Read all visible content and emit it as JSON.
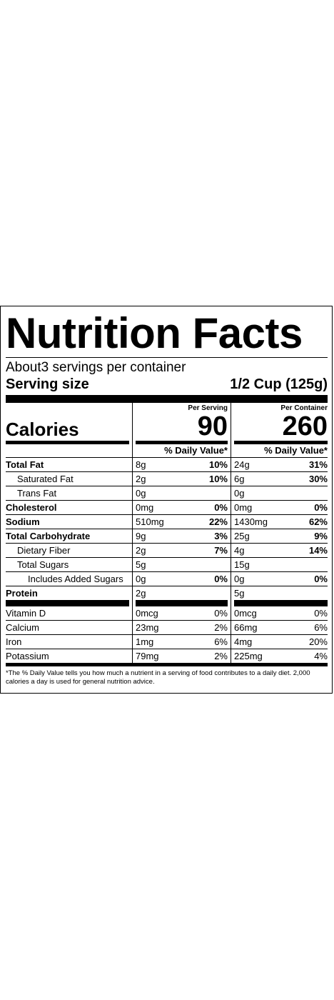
{
  "title": "Nutrition Facts",
  "servings_per_container": "About3 servings per container",
  "serving_size_label": "Serving size",
  "serving_size_value": "1/2 Cup (125g)",
  "per_serving_header": "Per Serving",
  "per_container_header": "Per Container",
  "calories_label": "Calories",
  "calories_serving": "90",
  "calories_container": "260",
  "dv_header": "% Daily Value*",
  "nutrients": [
    {
      "name": "Total Fat",
      "bold": true,
      "indent": 0,
      "s_amt": "8g",
      "s_dv": "10%",
      "c_amt": "24g",
      "c_dv": "31%"
    },
    {
      "name": "Saturated Fat",
      "bold": false,
      "indent": 1,
      "s_amt": "2g",
      "s_dv": "10%",
      "c_amt": "6g",
      "c_dv": "30%"
    },
    {
      "name": "Trans Fat",
      "bold": false,
      "indent": 1,
      "s_amt": "0g",
      "s_dv": "",
      "c_amt": "0g",
      "c_dv": ""
    },
    {
      "name": "Cholesterol",
      "bold": true,
      "indent": 0,
      "s_amt": "0mg",
      "s_dv": "0%",
      "c_amt": "0mg",
      "c_dv": "0%"
    },
    {
      "name": "Sodium",
      "bold": true,
      "indent": 0,
      "s_amt": "510mg",
      "s_dv": "22%",
      "c_amt": "1430mg",
      "c_dv": "62%"
    },
    {
      "name": "Total Carbohydrate",
      "bold": true,
      "indent": 0,
      "s_amt": "9g",
      "s_dv": "3%",
      "c_amt": "25g",
      "c_dv": "9%"
    },
    {
      "name": "Dietary Fiber",
      "bold": false,
      "indent": 1,
      "s_amt": "2g",
      "s_dv": "7%",
      "c_amt": "4g",
      "c_dv": "14%"
    },
    {
      "name": "Total Sugars",
      "bold": false,
      "indent": 1,
      "s_amt": "5g",
      "s_dv": "",
      "c_amt": "15g",
      "c_dv": ""
    },
    {
      "name": "Includes Added Sugars",
      "bold": false,
      "indent": 2,
      "s_amt": "0g",
      "s_dv": "0%",
      "c_amt": "0g",
      "c_dv": "0%"
    },
    {
      "name": "Protein",
      "bold": true,
      "indent": 0,
      "s_amt": "2g",
      "s_dv": "",
      "c_amt": "5g",
      "c_dv": ""
    }
  ],
  "vitamins": [
    {
      "name": "Vitamin D",
      "s_amt": "0mcg",
      "s_dv": "0%",
      "c_amt": "0mcg",
      "c_dv": "0%"
    },
    {
      "name": "Calcium",
      "s_amt": "23mg",
      "s_dv": "2%",
      "c_amt": "66mg",
      "c_dv": "6%"
    },
    {
      "name": "Iron",
      "s_amt": "1mg",
      "s_dv": "6%",
      "c_amt": "4mg",
      "c_dv": "20%"
    },
    {
      "name": "Potassium",
      "s_amt": "79mg",
      "s_dv": "2%",
      "c_amt": "225mg",
      "c_dv": "4%"
    }
  ],
  "footnote": "*The % Daily Value tells you how much a nutrient in a serving of food contributes to a daily diet. 2,000 calories a day is used for general nutrition advice."
}
